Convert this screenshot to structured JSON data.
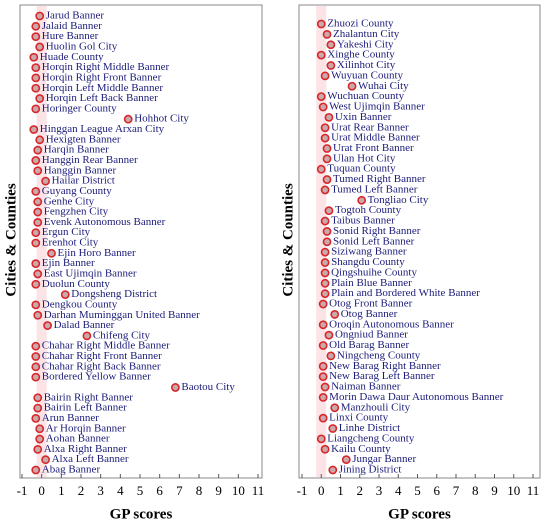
{
  "chart_data": [
    {
      "type": "dot",
      "xlabel": "GP scores",
      "ylabel": "Cities & Counties",
      "xlim": [
        -1,
        11
      ],
      "xticks": [
        -1,
        0,
        1,
        2,
        3,
        4,
        5,
        6,
        7,
        8,
        9,
        10,
        11
      ],
      "color": "#d9262b",
      "categories": [
        "Jarud Banner",
        "Jalaid Banner",
        "Hure Banner",
        "Huolin Gol City",
        "Huade County",
        "Horqin Right Middle Banner",
        "Horqin Right Front Banner",
        "Horqin Left Middle Banner",
        "Horqin Left Back Banner",
        "Horinger County",
        "Hohhot City",
        "Hinggan League Arxan City",
        "Hexigten Banner",
        "Harqin Banner",
        "Hanggin Rear Banner",
        "Hanggin Banner",
        "Hailar District",
        "Guyang County",
        "Genhe City",
        "Fengzhen City",
        "Evenk Autonomous Banner",
        "Ergun City",
        "Erenhot City",
        "Ejin Horo Banner",
        "Ejin Banner",
        "East Ujimqin Banner",
        "Duolun County",
        "Dongsheng District",
        "Dengkou County",
        "Darhan Muminggan United Banner",
        "Dalad Banner",
        "Chifeng City",
        "Chahar Right Middle Banner",
        "Chahar Right Front Banner",
        "Chahar Right Back Banner",
        "Bordered Yellow Banner",
        "Baotou City",
        "Bairin Right Banner",
        "Bairin Left Banner",
        "Arun Banner",
        "Ar Horqin Banner",
        "Aohan Banner",
        "Alxa Right Banner",
        "Alxa Left Banner",
        "Abag Banner"
      ],
      "values": [
        -0.1,
        -0.3,
        -0.3,
        -0.1,
        -0.4,
        -0.3,
        -0.3,
        -0.3,
        -0.1,
        -0.3,
        4.4,
        -0.4,
        -0.1,
        -0.2,
        -0.3,
        -0.2,
        0.2,
        -0.3,
        -0.2,
        -0.2,
        -0.2,
        -0.3,
        -0.3,
        0.5,
        -0.3,
        -0.2,
        -0.3,
        1.2,
        -0.3,
        -0.2,
        0.3,
        2.3,
        -0.3,
        -0.3,
        -0.3,
        -0.3,
        6.8,
        -0.2,
        -0.2,
        -0.3,
        -0.1,
        -0.1,
        -0.2,
        0.2,
        -0.3
      ]
    },
    {
      "type": "dot",
      "xlabel": "GP scores",
      "ylabel": "Cities & Counties",
      "xlim": [
        -1,
        11
      ],
      "xticks": [
        -1,
        0,
        1,
        2,
        3,
        4,
        5,
        6,
        7,
        8,
        9,
        10,
        11
      ],
      "color": "#d9262b",
      "categories": [
        "Zhuozi County",
        "Zhalantun City",
        "Yakeshi City",
        "Xinghe County",
        "Xilinhot City",
        "Wuyuan County",
        "Wuhai City",
        "Wuchuan County",
        "West Ujimqin Banner",
        "Uxin Banner",
        "Urat Rear Banner",
        "Urat Middle Banner",
        "Urat Front Banner",
        "Ulan Hot City",
        "Tuquan County",
        "Tumed Right Banner",
        "Tumed Left Banner",
        "Tongliao City",
        "Togtoh County",
        "Taibus Banner",
        "Sonid Right Banner",
        "Sonid Left Banner",
        "Siziwang Banner",
        "Shangdu County",
        "Qingshuihe County",
        "Plain Blue Banner",
        "Plain and Bordered White Banner",
        "Otog Front Banner",
        "Otog Banner",
        "Oroqin Autonomous Banner",
        "Ongniud Banner",
        "Old Barag Banner",
        "Ningcheng County",
        "New Barag Right Banner",
        "New Barag Left Banner",
        "Naiman Banner",
        "Morin Dawa Daur Autonomous Banner",
        "Manzhouli City",
        "Linxi County",
        "Linhe District",
        "Liangcheng County",
        "Kailu County",
        "Jungar Banner",
        "Jining District"
      ],
      "values": [
        0,
        0.3,
        0.5,
        0,
        0.5,
        0.2,
        1.6,
        0,
        0.1,
        0.4,
        0.2,
        0.2,
        0.3,
        0.3,
        0,
        0.3,
        0.2,
        2.1,
        0.4,
        0.2,
        0.3,
        0.3,
        0.2,
        0.2,
        0.2,
        0.2,
        0.2,
        0.1,
        0.7,
        0.1,
        0.4,
        0.1,
        0.5,
        0.1,
        0.1,
        0.2,
        0.1,
        0.7,
        0.1,
        0.6,
        0,
        0.2,
        1.3,
        0.6
      ]
    }
  ]
}
